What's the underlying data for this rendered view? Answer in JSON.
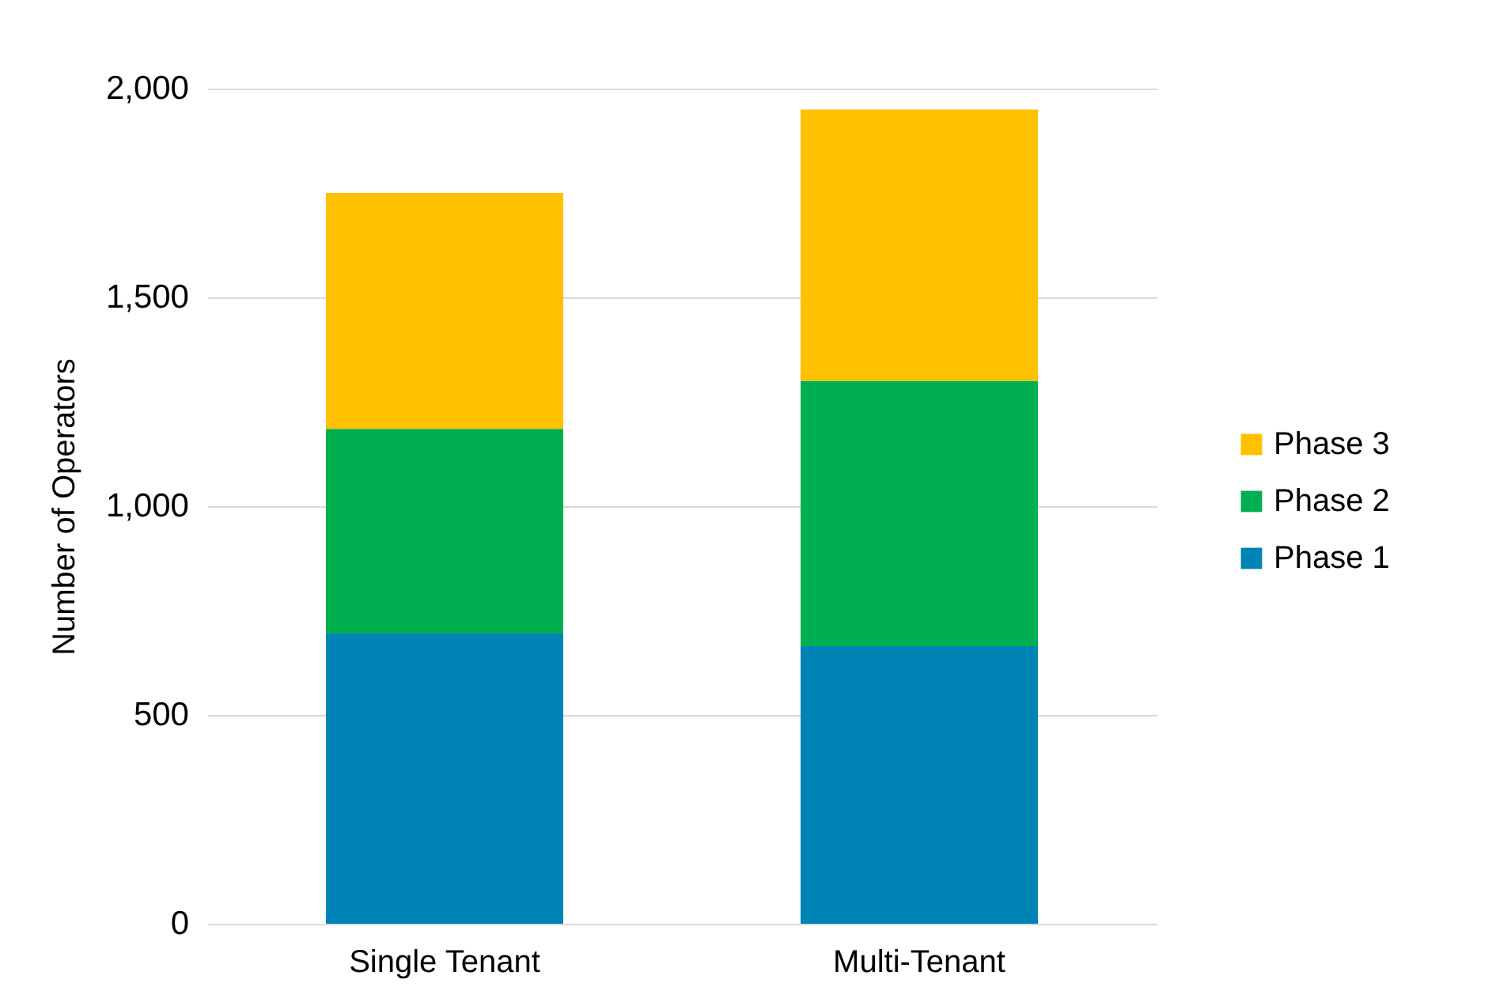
{
  "chart_data": {
    "type": "bar",
    "stacked": true,
    "ylabel": "Number of Operators",
    "categories": [
      "Single Tenant",
      "Multi-Tenant"
    ],
    "series": [
      {
        "name": "Phase 1",
        "color": "#0084b6",
        "values": [
          695,
          665
        ]
      },
      {
        "name": "Phase 2",
        "color": "#00b050",
        "values": [
          490,
          635
        ]
      },
      {
        "name": "Phase 3",
        "color": "#ffc000",
        "values": [
          565,
          650
        ]
      }
    ],
    "ylim": [
      0,
      2000
    ],
    "yticks": [
      0,
      500,
      {
        "value": 1000,
        "label": "1,000"
      },
      {
        "value": 1500,
        "label": "1,500"
      },
      {
        "value": 2000,
        "label": "2,000"
      }
    ],
    "grid": "y",
    "legend": "right"
  }
}
